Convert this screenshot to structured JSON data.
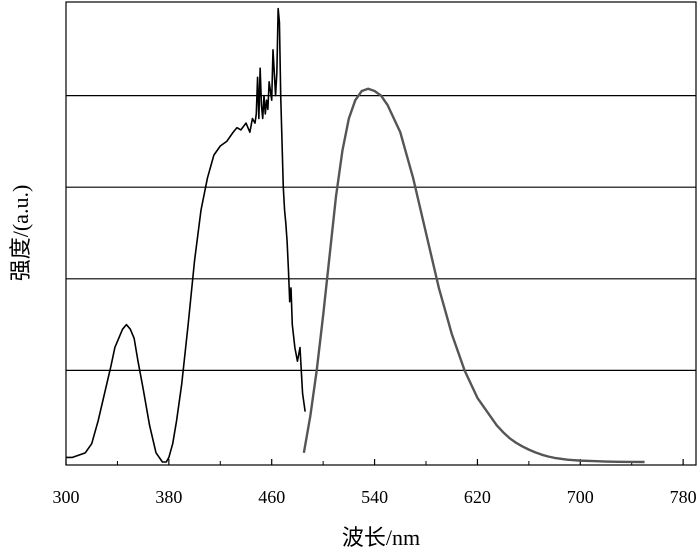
{
  "chart_data": {
    "type": "line",
    "xlabel": "波长/nm",
    "ylabel": "强度/(a.u.)",
    "xlim": [
      300,
      790
    ],
    "ylim": [
      0,
      1.0
    ],
    "x_ticks": [
      300,
      380,
      460,
      540,
      620,
      700,
      780
    ],
    "grid": "horizontal",
    "gridlines_y": [
      0.2,
      0.4,
      0.6,
      0.8
    ],
    "colors": {
      "excitation": "#000000",
      "emission": "#555555",
      "grid": "#000000"
    },
    "series": [
      {
        "x": [
          300,
          305,
          310,
          315,
          320,
          325,
          330,
          335,
          338,
          341,
          344,
          347,
          350,
          353,
          356,
          360,
          365,
          370,
          375,
          378,
          380,
          383,
          386,
          390,
          395,
          400,
          405,
          410,
          415,
          420,
          425,
          430,
          433,
          436,
          440,
          443,
          445,
          447,
          448,
          449,
          450,
          451,
          452,
          453,
          454,
          455,
          456,
          457,
          458,
          459,
          460,
          461,
          462,
          463,
          464,
          465,
          466,
          467,
          468,
          469,
          470,
          471,
          472,
          473,
          474,
          475,
          476,
          478,
          480,
          482,
          484,
          486
        ],
        "values": [
          0.01,
          0.01,
          0.015,
          0.02,
          0.04,
          0.09,
          0.15,
          0.21,
          0.25,
          0.27,
          0.29,
          0.3,
          0.29,
          0.27,
          0.22,
          0.16,
          0.08,
          0.02,
          0.0,
          0.0,
          0.01,
          0.04,
          0.09,
          0.17,
          0.3,
          0.44,
          0.55,
          0.62,
          0.67,
          0.69,
          0.7,
          0.72,
          0.73,
          0.725,
          0.74,
          0.72,
          0.75,
          0.74,
          0.76,
          0.84,
          0.75,
          0.86,
          0.78,
          0.75,
          0.8,
          0.76,
          0.79,
          0.77,
          0.83,
          0.81,
          0.79,
          0.9,
          0.85,
          0.8,
          0.85,
          0.99,
          0.96,
          0.8,
          0.7,
          0.6,
          0.55,
          0.52,
          0.48,
          0.42,
          0.35,
          0.38,
          0.3,
          0.25,
          0.22,
          0.25,
          0.15,
          0.11
        ]
      },
      {
        "x": [
          485,
          490,
          495,
          500,
          505,
          510,
          515,
          520,
          525,
          530,
          535,
          540,
          545,
          550,
          555,
          560,
          565,
          570,
          575,
          580,
          585,
          590,
          595,
          600,
          605,
          610,
          615,
          620,
          625,
          630,
          635,
          640,
          645,
          650,
          655,
          660,
          665,
          670,
          675,
          680,
          685,
          690,
          695,
          700,
          710,
          720,
          730,
          740,
          750
        ],
        "values": [
          0.02,
          0.1,
          0.2,
          0.32,
          0.45,
          0.58,
          0.68,
          0.75,
          0.79,
          0.81,
          0.815,
          0.81,
          0.8,
          0.78,
          0.75,
          0.72,
          0.67,
          0.62,
          0.56,
          0.5,
          0.44,
          0.38,
          0.33,
          0.28,
          0.24,
          0.2,
          0.17,
          0.14,
          0.12,
          0.1,
          0.08,
          0.065,
          0.052,
          0.042,
          0.034,
          0.027,
          0.021,
          0.016,
          0.012,
          0.009,
          0.007,
          0.005,
          0.004,
          0.003,
          0.002,
          0.001,
          0.0005,
          0.0002,
          0.0
        ]
      }
    ]
  }
}
